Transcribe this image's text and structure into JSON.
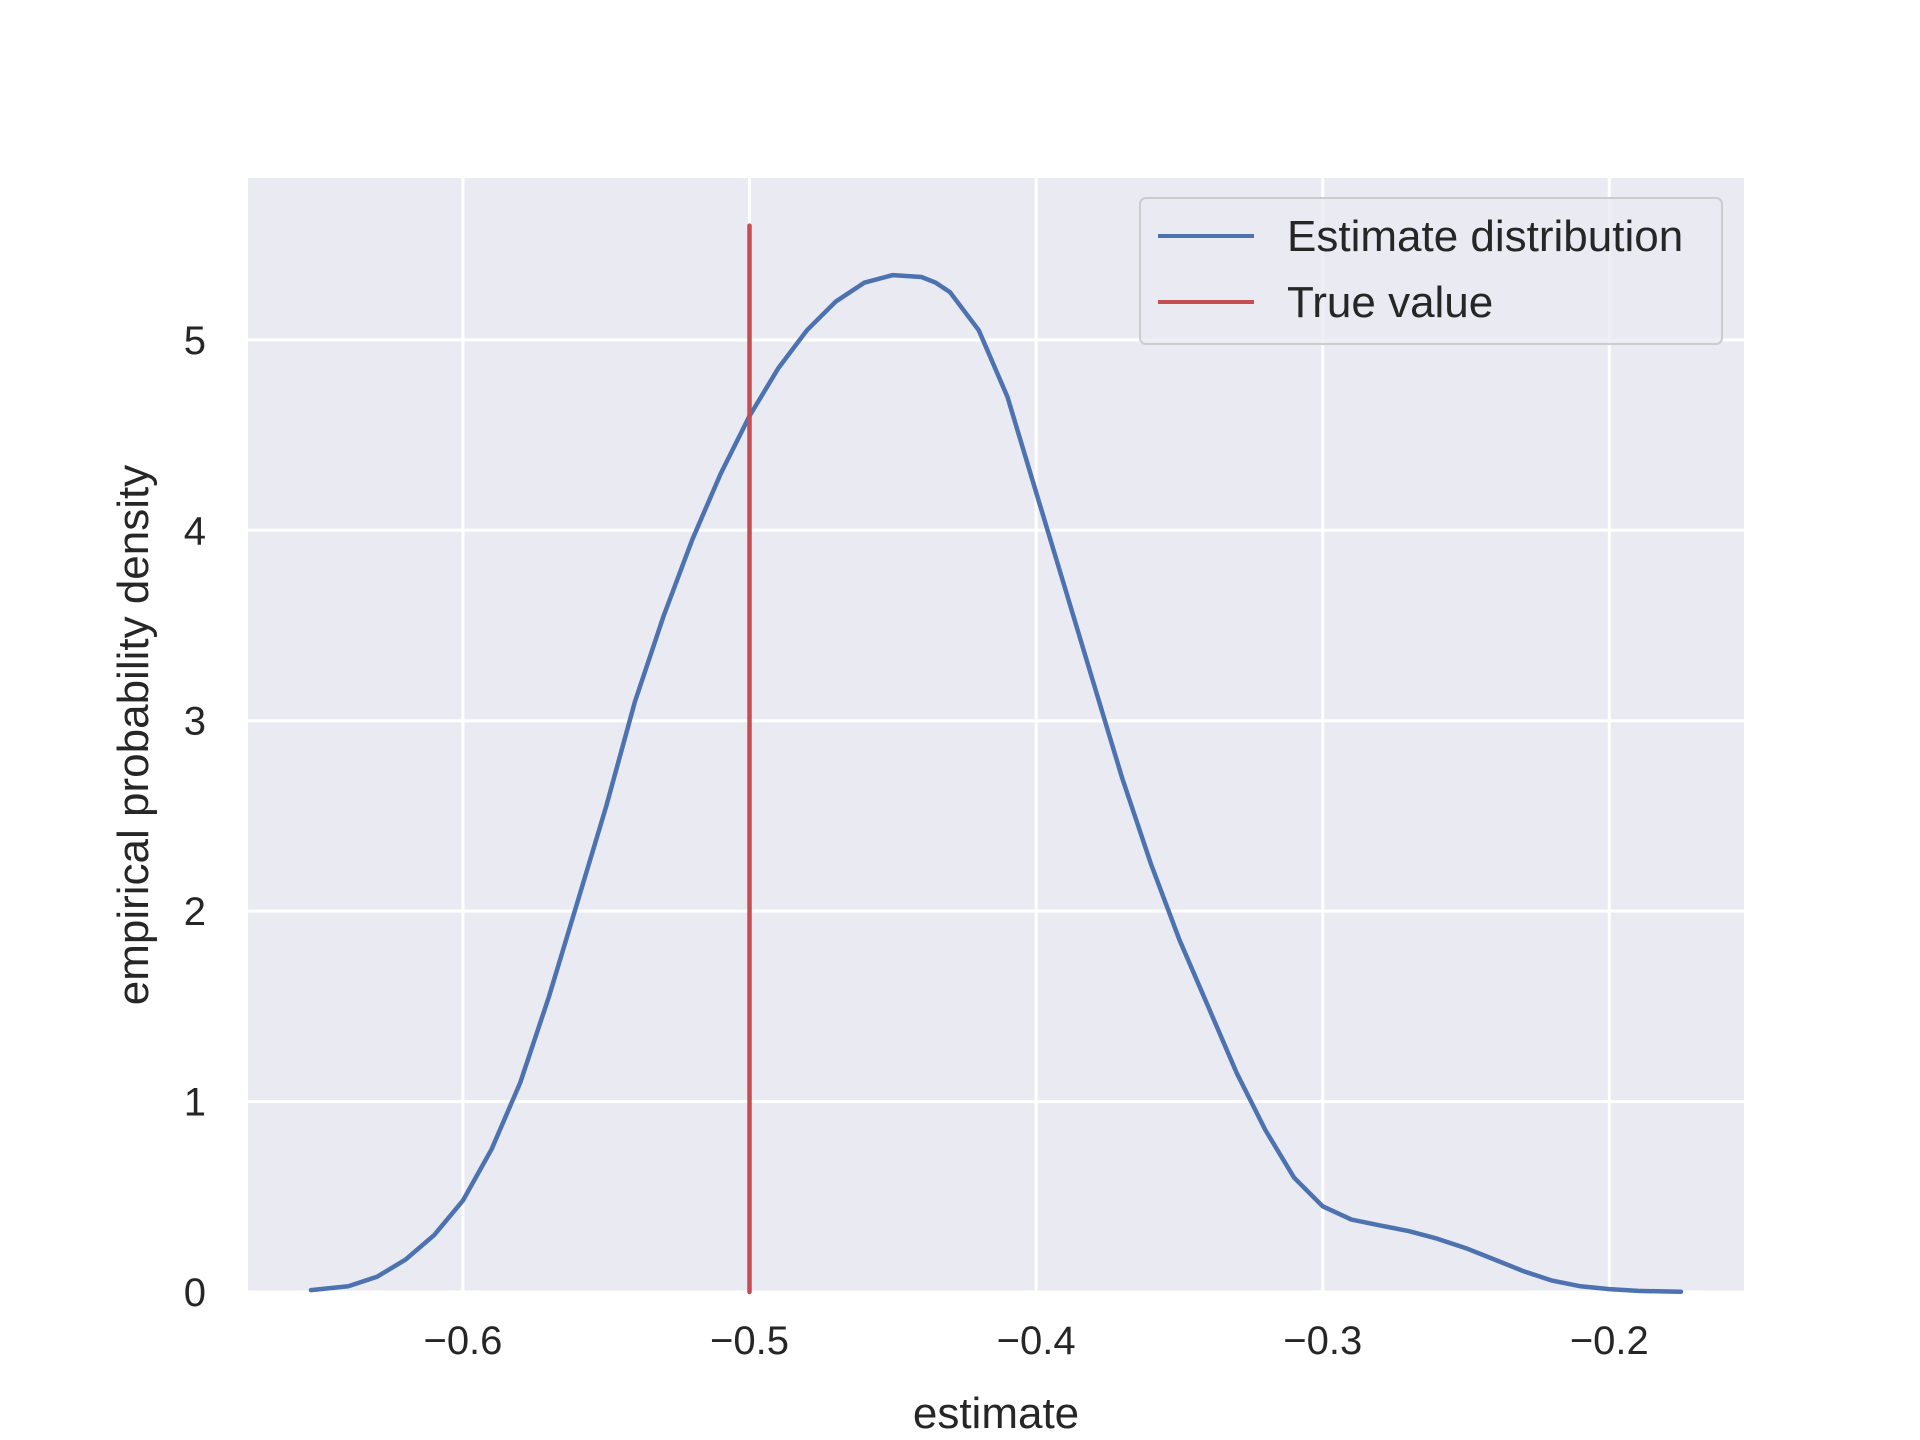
{
  "chart_data": {
    "type": "line",
    "title": "",
    "xlabel": "estimate",
    "ylabel": "empirical probability density",
    "xlim": [
      -0.675,
      -0.153
    ],
    "ylim": [
      0,
      5.85
    ],
    "xticks": [
      -0.6,
      -0.5,
      -0.4,
      -0.3,
      -0.2
    ],
    "xtick_labels": [
      "−0.6",
      "−0.5",
      "−0.4",
      "−0.3",
      "−0.2"
    ],
    "yticks": [
      0,
      1,
      2,
      3,
      4,
      5
    ],
    "ytick_labels": [
      "0",
      "1",
      "2",
      "3",
      "4",
      "5"
    ],
    "grid": true,
    "legend_position": "top-right",
    "series": [
      {
        "name": "Estimate distribution",
        "color": "#4c72b0",
        "x": [
          -0.653,
          -0.64,
          -0.63,
          -0.62,
          -0.61,
          -0.6,
          -0.59,
          -0.58,
          -0.57,
          -0.56,
          -0.55,
          -0.54,
          -0.53,
          -0.52,
          -0.51,
          -0.5,
          -0.49,
          -0.48,
          -0.47,
          -0.46,
          -0.45,
          -0.44,
          -0.435,
          -0.43,
          -0.42,
          -0.41,
          -0.4,
          -0.39,
          -0.38,
          -0.37,
          -0.36,
          -0.35,
          -0.34,
          -0.33,
          -0.32,
          -0.31,
          -0.3,
          -0.29,
          -0.28,
          -0.27,
          -0.26,
          -0.25,
          -0.24,
          -0.23,
          -0.22,
          -0.21,
          -0.2,
          -0.19,
          -0.175
        ],
        "y": [
          0.01,
          0.03,
          0.08,
          0.17,
          0.3,
          0.48,
          0.75,
          1.1,
          1.55,
          2.05,
          2.55,
          3.1,
          3.55,
          3.95,
          4.3,
          4.6,
          4.85,
          5.05,
          5.2,
          5.3,
          5.34,
          5.33,
          5.3,
          5.25,
          5.05,
          4.7,
          4.2,
          3.7,
          3.2,
          2.7,
          2.25,
          1.85,
          1.5,
          1.15,
          0.85,
          0.6,
          0.45,
          0.38,
          0.35,
          0.32,
          0.28,
          0.23,
          0.17,
          0.11,
          0.06,
          0.03,
          0.015,
          0.006,
          0.001
        ]
      },
      {
        "name": "True value",
        "color": "#c44e52",
        "x": [
          -0.5,
          -0.5
        ],
        "y": [
          0,
          5.6
        ]
      }
    ]
  }
}
